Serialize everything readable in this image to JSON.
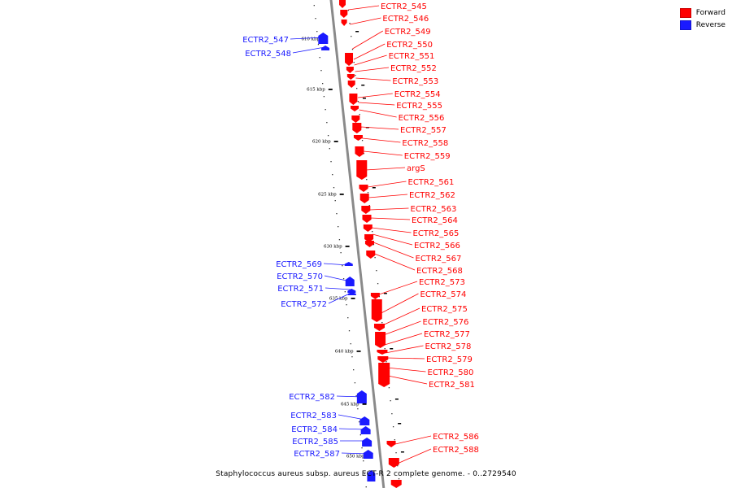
{
  "colors": {
    "forward": "#ff0000",
    "reverse": "#1a1aff",
    "backbone": "#8a8a8a"
  },
  "legend": [
    {
      "label": "Forward",
      "color": "#ff0000"
    },
    {
      "label": "Reverse",
      "color": "#1a1aff"
    }
  ],
  "caption": "Staphylococcus aureus subsp. aureus ECT-R 2 complete genome. - 0..2729540",
  "scale_marks": [
    "610 kbp",
    "615 kbp",
    "620 kbp",
    "625 kbp",
    "630 kbp",
    "635 kbp",
    "640 kbp",
    "645 kbp",
    "650 kbp"
  ],
  "forward_genes": [
    "ECTR2_545",
    "ECTR2_546",
    "ECTR2_549",
    "ECTR2_550",
    "ECTR2_551",
    "ECTR2_552",
    "ECTR2_553",
    "ECTR2_554",
    "ECTR2_555",
    "ECTR2_556",
    "ECTR2_557",
    "ECTR2_558",
    "ECTR2_559",
    "argS",
    "ECTR2_561",
    "ECTR2_562",
    "ECTR2_563",
    "ECTR2_564",
    "ECTR2_565",
    "ECTR2_566",
    "ECTR2_567",
    "ECTR2_568",
    "ECTR2_573",
    "ECTR2_574",
    "ECTR2_575",
    "ECTR2_576",
    "ECTR2_577",
    "ECTR2_578",
    "ECTR2_579",
    "ECTR2_580",
    "ECTR2_581",
    "ECTR2_586",
    "ECTR2_588"
  ],
  "reverse_genes": [
    "ECTR2_547",
    "ECTR2_548",
    "ECTR2_569",
    "ECTR2_570",
    "ECTR2_571",
    "ECTR2_572",
    "ECTR2_582",
    "ECTR2_583",
    "ECTR2_584",
    "ECTR2_585",
    "ECTR2_587"
  ]
}
